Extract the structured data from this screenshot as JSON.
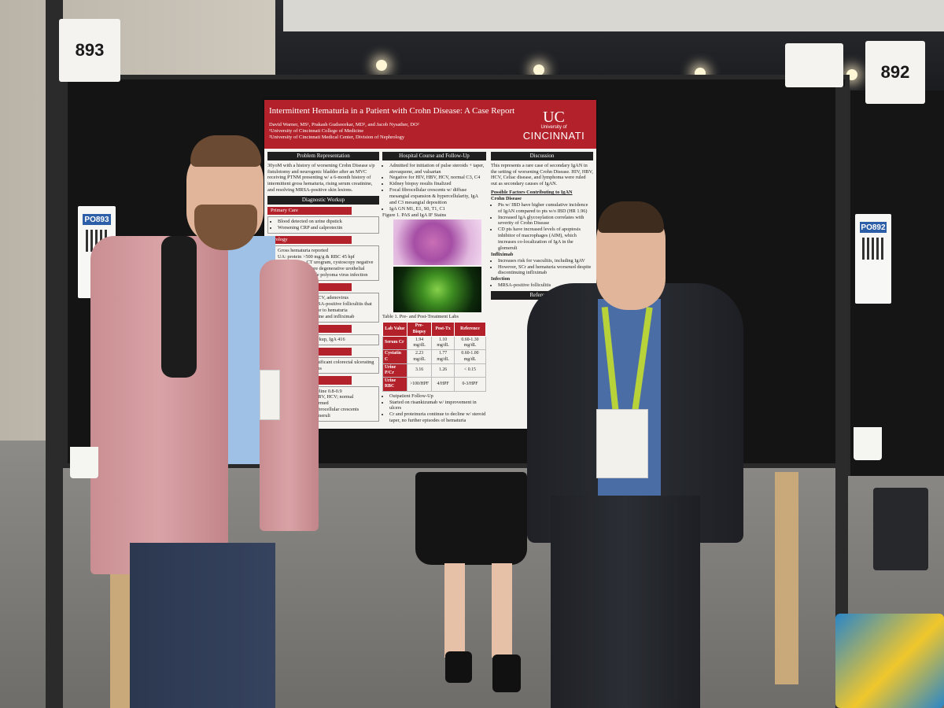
{
  "booth_numbers": {
    "left": "893",
    "right": "892"
  },
  "qr_cards": {
    "left": "PO893",
    "right": "PO892"
  },
  "poster": {
    "title": "Intermittent Hematuria in a Patient with Crohn Disease: A Case Report",
    "authors": "David Warner, MS¹, Prakash Gudsoorkar, MD², and Jacob Nysather, DO²",
    "affiliation_1": "¹University of Cincinnati College of Medicine",
    "affiliation_2": "²University of Cincinnati Medical Center, Division of Nephrology",
    "logo_top": "University of",
    "logo_bottom": "CINCINNATI",
    "problem_header": "Problem Representation",
    "problem_text": "30yoM with a history of worsening Crohn Disease s/p fistulotomy and neurogenic bladder after an MVC receiving PTNM presenting w/ a 6-month history of intermittent gross hematuria, rising serum creatinine, and resolving MRSA-positive skin lesions.",
    "workup_header": "Diagnostic Workup",
    "primary_care_header": "Primary Care",
    "primary_care_items": [
      "Blood detected on urine dipstick",
      "Worsening CRP and calprotectin"
    ],
    "urology_header": "Urology",
    "urology_items": [
      "Gross hematuria reported",
      "UA: protein >500 mg/g & RBC 45 hpf",
      "Urine culture, CT urogram, cystoscopy negative",
      "Urine cytology: rare degenerative urothelial cells, cannot exclude polyoma virus infection"
    ],
    "infectious_header": "Infectious Disease",
    "infectious_items": [
      "Negative for BKV, JCV, adenovirus",
      "Diagnosed with MRSA-positive folliculitis that started 4 months prior to hematuria",
      "Prescribed doxycycline and infliximab"
    ],
    "immunology_header": "Immunology",
    "immunology_items": [
      "Negative Celiac Workup, IgA 416"
    ],
    "gastro_header": "Gastroenterology",
    "gastro_items": [
      "Colonoscopy w/ significant colorectal ulcerating and severe ulcerations"
    ],
    "nephrology_header": "Nephrology",
    "nephrology_items": [
      "Creatinine from baseline 0.8-0.9",
      "Negative for HIV, HBV, HCV; normal",
      "Kidney biopsy performed",
      "Pathology read w/ fibrocellular crescents involving >20% glomeruli"
    ],
    "hospital_header": "Hospital Course and Follow-Up",
    "hospital_items": [
      "Admitted for initiation of pulse steroids + taper, atovaquone, and valsartan",
      "Negative for HIV, HBV, HCV, normal C3, C4",
      "Kidney biopsy results finalized",
      "Focal fibrocellular crescents w/ diffuse mesangial expansion & hypercellularity, IgA and C3 mesangial deposition",
      "IgA GN M1, E1, S0, T1, C1"
    ],
    "figure_caption": "Figure 1. PAS and IgA IF Stains",
    "table_caption": "Table 1. Pre- and Post-Treatment Labs",
    "lab_headers": [
      "Lab Value",
      "Pre-Biopsy",
      "Post-Tx",
      "Reference"
    ],
    "lab_rows": [
      [
        "Serum Cr",
        "1.94 mg/dL",
        "1.10 mg/dL",
        "0.60-1.30 mg/dL"
      ],
      [
        "Cystatin C",
        "2.23 mg/dL",
        "1.77 mg/dL",
        "0.60-1.00 mg/dL"
      ],
      [
        "Urine P/Cr",
        "3.16",
        "1.26",
        "< 0.15"
      ],
      [
        "Urine RBC",
        ">100/HPF",
        "4/HPF",
        "0-3/HPF"
      ]
    ],
    "followup_items": [
      "Outpatient Follow-Up",
      "Started on risankizumab w/ improvement in ulcers",
      "Cr and proteinuria continue to decline w/ steroid taper, no further episodes of hematuria"
    ],
    "discussion_header": "Discussion",
    "discussion_text": "This represents a rare case of secondary IgAN in the setting of worsening Crohn Disease. HIV, HBV, HCV, Celiac disease, and lymphoma were ruled out as secondary causes of IgAN.",
    "factors_header": "Possible Factors Contributing to IgAN",
    "crohn_header": "Crohn Disease",
    "crohn_items": [
      "Pts w/ IBD have higher cumulative incidence of IgAN compared to pts w/o IBD (HR 1.96)",
      "Increased IgA glycosylation correlates with severity of Crohn Disease",
      "CD pts have increased levels of apoptosis inhibitor of macrophages (AIM), which increases co-localization of IgA in the glomeruli"
    ],
    "infliximab_header": "Infliximab",
    "infliximab_items": [
      "Increases risk for vasculitis, including IgAV",
      "However, SCr and hematuria worsened despite discontinuing infliximab"
    ],
    "infection_header": "Infection",
    "infection_items": [
      "MRSA-positive folliculitis"
    ],
    "references_header": "References"
  }
}
